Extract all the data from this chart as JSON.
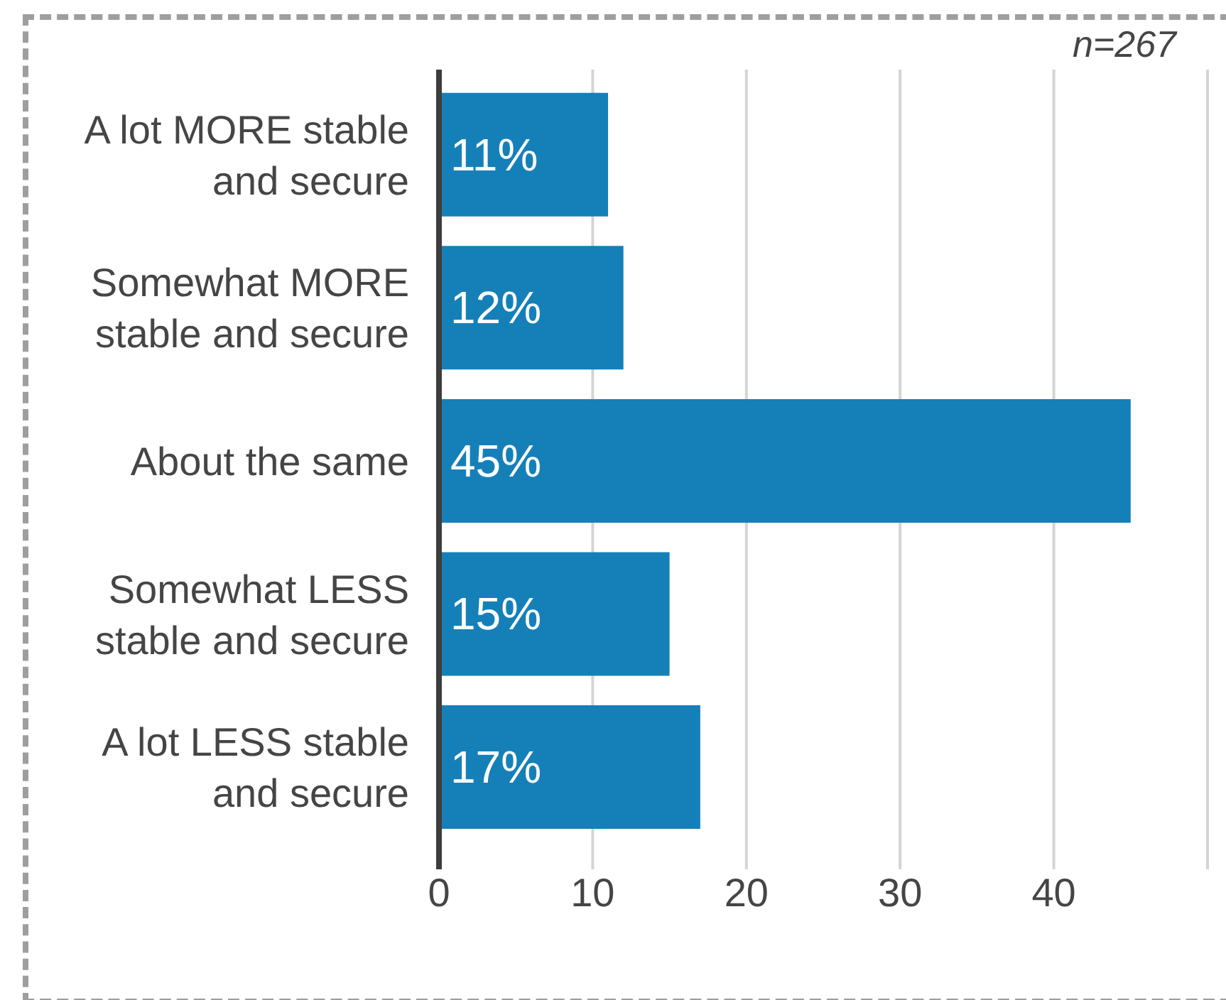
{
  "chart_data": {
    "type": "bar",
    "orientation": "horizontal",
    "categories": [
      "A lot MORE stable and secure",
      "Somewhat MORE stable and secure",
      "About the same",
      "Somewhat LESS stable and secure",
      "A lot LESS stable and secure"
    ],
    "values": [
      11,
      12,
      45,
      15,
      17
    ],
    "color": "#1580b8",
    "value_labels": [
      "11%",
      "12%",
      "45%",
      "15%",
      "17%"
    ],
    "xlim": [
      0,
      50
    ],
    "xticks": [
      0,
      10,
      20,
      30,
      40
    ],
    "grid": "x",
    "annotations": [
      "n=267"
    ]
  }
}
